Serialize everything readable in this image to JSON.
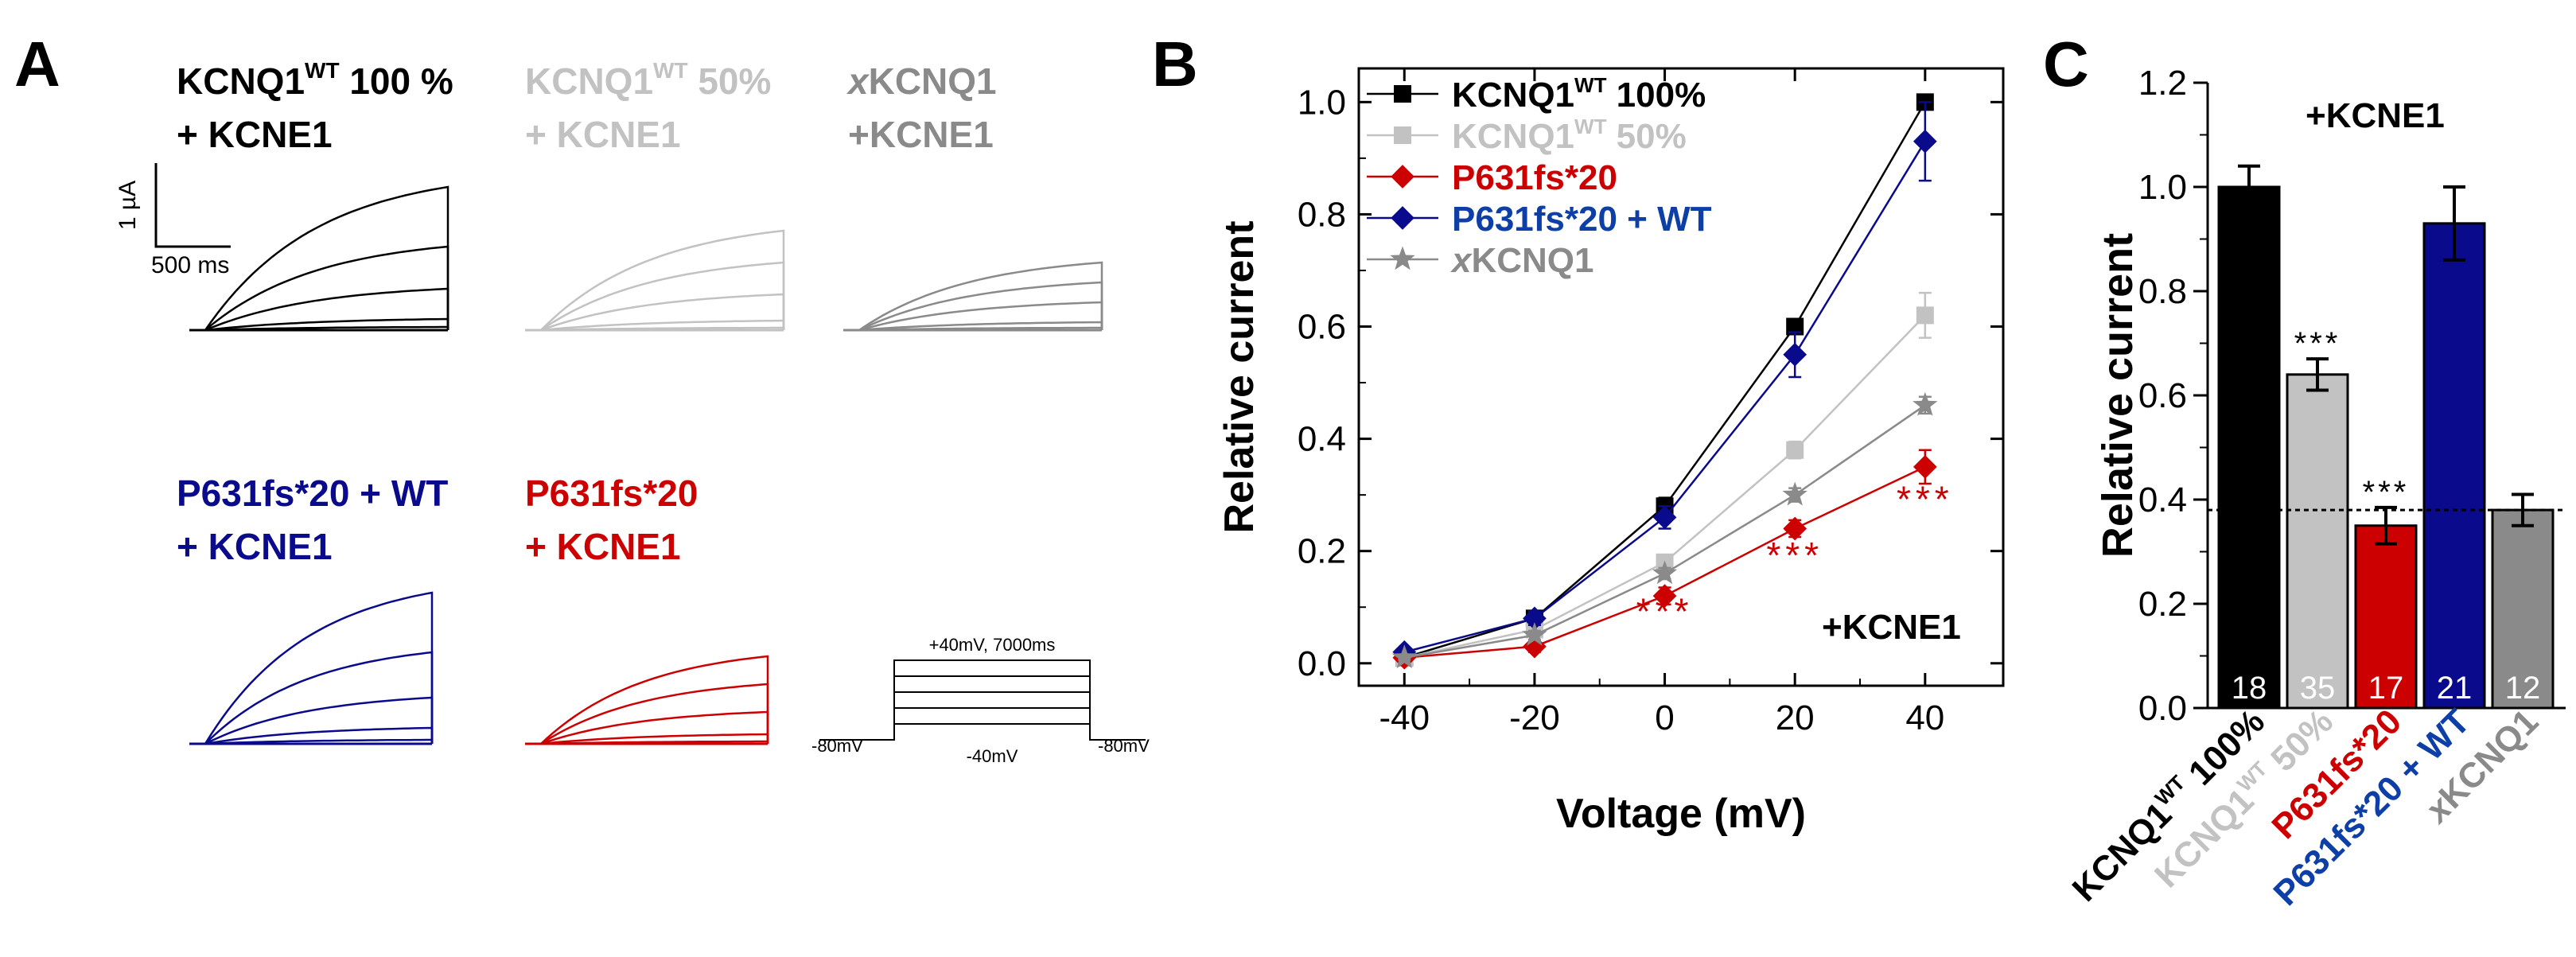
{
  "colors": {
    "wt100": "#000000",
    "wt50": "#c2c2c2",
    "x": "#8a8a8a",
    "mut": "#cc0000",
    "het": "#0a0a8c",
    "het_text": "#0d3fa6"
  },
  "panelA": {
    "letter": "A",
    "groups": [
      {
        "l1": "KCNQ1",
        "sup": "WT",
        "l1b": " 100 %",
        "l2": "+ KCNE1"
      },
      {
        "l1": "KCNQ1",
        "sup": "WT",
        "l1b": " 50%",
        "l2": "+ KCNE1"
      },
      {
        "l1pre": "x",
        "l1": "KCNQ1",
        "l2": "+KCNE1"
      },
      {
        "l1": "P631fs*20 + WT",
        "l2": "+ KCNE1"
      },
      {
        "l1": "P631fs*20",
        "l2": "+ KCNE1"
      }
    ],
    "scale": {
      "y": "1 µA",
      "x": "500 ms"
    },
    "protocol": {
      "top": "+40mV, 7000ms",
      "left": "-80mV",
      "mid": "-40mV",
      "right": "-80mV"
    }
  },
  "chart_data": [
    {
      "panel": "B",
      "type": "line",
      "xlabel": "Voltage (mV)",
      "ylabel": "Relative current",
      "xlim": [
        -47,
        52
      ],
      "ylim": [
        -0.04,
        1.06
      ],
      "xticks": [
        "-40",
        "-20",
        "0",
        "20",
        "40"
      ],
      "yticks": [
        "0.0",
        "0.2",
        "0.4",
        "0.6",
        "0.8",
        "1.0"
      ],
      "x": [
        -40,
        -20,
        0,
        20,
        40
      ],
      "series": [
        {
          "name": "KCNQ1",
          "sup": "WT",
          "suffix": " 100%",
          "marker": "square",
          "values": [
            0.01,
            0.08,
            0.28,
            0.6,
            1.0
          ],
          "err": [
            0.005,
            0.01,
            0.015,
            0.01,
            0.0
          ]
        },
        {
          "name": "KCNQ1",
          "sup": "WT",
          "suffix": " 50%",
          "marker": "square",
          "values": [
            0.01,
            0.06,
            0.18,
            0.38,
            0.62
          ],
          "err": [
            0.005,
            0.01,
            0.012,
            0.015,
            0.04
          ]
        },
        {
          "name": "P631fs*20",
          "marker": "diamond",
          "values": [
            0.01,
            0.03,
            0.12,
            0.24,
            0.35
          ],
          "err": [
            0.005,
            0.01,
            0.015,
            0.015,
            0.03
          ]
        },
        {
          "name": "P631fs*20 + WT",
          "marker": "diamond",
          "values": [
            0.02,
            0.08,
            0.26,
            0.55,
            0.93
          ],
          "err": [
            0.005,
            0.012,
            0.02,
            0.04,
            0.07
          ]
        },
        {
          "prefix": "x",
          "name": "KCNQ1",
          "marker": "star",
          "values": [
            0.01,
            0.05,
            0.16,
            0.3,
            0.46
          ],
          "err": [
            0.004,
            0.008,
            0.01,
            0.012,
            0.015
          ]
        }
      ],
      "annotations": {
        "sig": "***",
        "condition": "+KCNE1"
      }
    },
    {
      "panel": "C",
      "type": "bar",
      "ylabel": "Relative current",
      "ylim": [
        0,
        1.2
      ],
      "yticks": [
        "0.0",
        "0.2",
        "0.4",
        "0.6",
        "0.8",
        "1.0",
        "1.2"
      ],
      "reference_line": 0.38,
      "condition": "+KCNE1",
      "categories": [
        "KCNQ1 WT 100%",
        "KCNQ1 WT 50%",
        "P631fs*20",
        "P631fs*20 + WT",
        "xKCNQ1"
      ],
      "labels": [
        {
          "main": "KCNQ1",
          "sup": "WT",
          "suffix": " 100%"
        },
        {
          "main": "KCNQ1",
          "sup": "WT",
          "suffix": " 50%"
        },
        {
          "main": "P631fs*20"
        },
        {
          "main": "P631fs*20 + WT"
        },
        {
          "prefix": "x",
          "main": "KCNQ1"
        }
      ],
      "values": [
        1.0,
        0.64,
        0.35,
        0.93,
        0.38
      ],
      "err": [
        0.04,
        0.03,
        0.035,
        0.07,
        0.03
      ],
      "n": [
        "18",
        "35",
        "17",
        "21",
        "12"
      ],
      "sig": [
        "",
        "***",
        "***",
        "",
        ""
      ]
    }
  ]
}
